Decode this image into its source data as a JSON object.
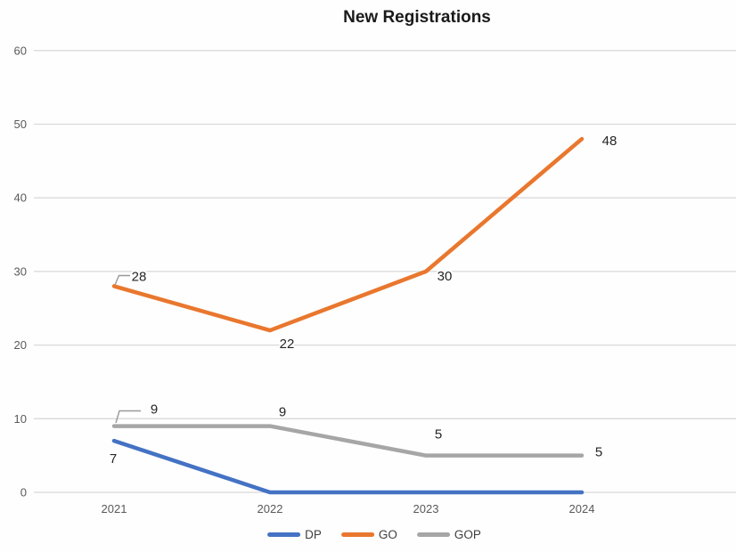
{
  "chart_data": {
    "type": "line",
    "title": "New Registrations",
    "categories": [
      "2021",
      "2022",
      "2023",
      "2024"
    ],
    "series": [
      {
        "name": "DP",
        "color": "#4472C4",
        "values": [
          7,
          0,
          0,
          0
        ],
        "show_labels": [
          true,
          false,
          false,
          false
        ]
      },
      {
        "name": "GO",
        "color": "#E9772E",
        "values": [
          28,
          22,
          30,
          48
        ],
        "show_labels": [
          true,
          true,
          true,
          true
        ]
      },
      {
        "name": "GOP",
        "color": "#A6A6A6",
        "values": [
          9,
          9,
          5,
          5
        ],
        "show_labels": [
          true,
          true,
          true,
          true
        ]
      }
    ],
    "yticks": [
      0,
      10,
      20,
      30,
      40,
      50,
      60
    ],
    "ylim": [
      0,
      60
    ],
    "grid": true,
    "grid_color": "#D9D9D9",
    "leader_line_color": "#999999",
    "legend_position": "bottom",
    "data_labels": true
  }
}
